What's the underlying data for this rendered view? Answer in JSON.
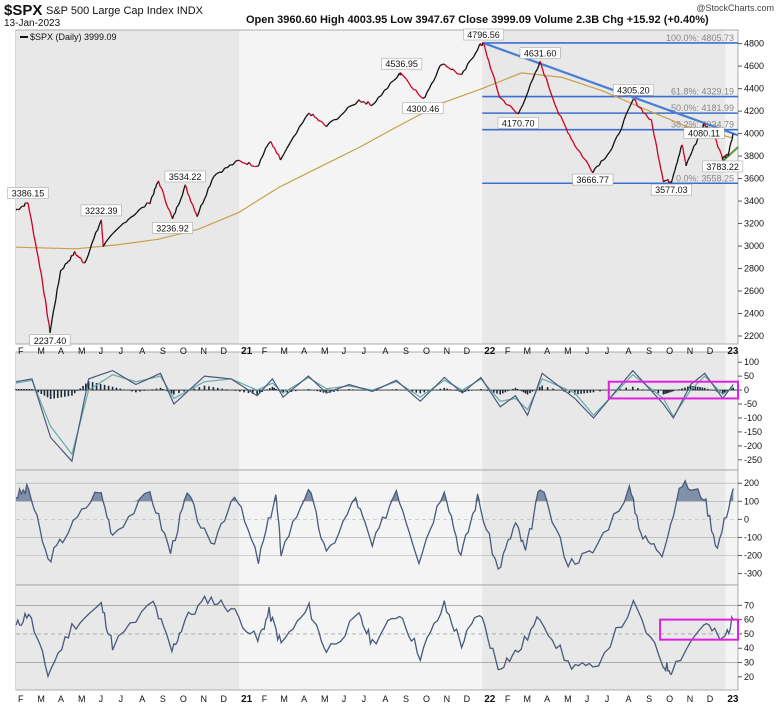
{
  "header": {
    "symbol": "$SPX",
    "name": "S&P 500 Large Cap Index",
    "exchange": "INDX",
    "date": "13-Jan-2023",
    "ohlc_text": "Open 3960.60  High 4003.95  Low 3947.67  Close 3999.09  Volume 2.3B  Chg +15.92 (+0.40%)",
    "brand": "@StockCharts.com"
  },
  "colors": {
    "price_up": "#111111",
    "price_down": "#cc0022",
    "ma": "#c9a14a",
    "trendline": "#4a7fd4",
    "support_green": "#5a9a3a",
    "fib_lines": "#3a6fd0",
    "magenta_box": "#e020e0",
    "indicator_line": "#4a5a7a",
    "indicator_fill": "#8090a8",
    "panel_bg_shaded": "#e8e8e8",
    "panel_bg": "#f4f4f4"
  },
  "chart_data": [
    {
      "type": "line",
      "panel": "price",
      "legend": "$SPX (Daily) 3999.09",
      "ylim": [
        2200,
        4850
      ],
      "y_ticks": [
        2200,
        2400,
        2600,
        2800,
        3000,
        3200,
        3400,
        3600,
        3800,
        4000,
        4200,
        4400,
        4600,
        4800
      ],
      "x_month_labels": [
        "F",
        "M",
        "A",
        "M",
        "J",
        "J",
        "A",
        "S",
        "O",
        "N",
        "D",
        "21",
        "F",
        "M",
        "A",
        "M",
        "J",
        "J",
        "A",
        "S",
        "O",
        "N",
        "D",
        "22",
        "F",
        "M",
        "A",
        "M",
        "J",
        "J",
        "A",
        "S",
        "O",
        "N",
        "D",
        "23"
      ],
      "x_range": [
        "2020-02-01",
        "2023-01-20"
      ],
      "series": [
        {
          "x": [
            "2020-02-01",
            "2020-02-19",
            "2020-03-10",
            "2020-03-23",
            "2020-04-08",
            "2020-04-29",
            "2020-05-14",
            "2020-06-08",
            "2020-06-11",
            "2020-07-15",
            "2020-08-20",
            "2020-09-02",
            "2020-09-23",
            "2020-10-12",
            "2020-10-30",
            "2020-11-24",
            "2020-12-31",
            "2021-01-29",
            "2021-02-16",
            "2021-03-04",
            "2021-04-16",
            "2021-05-12",
            "2021-06-30",
            "2021-07-20",
            "2021-08-30",
            "2021-09-02",
            "2021-10-04",
            "2021-11-02",
            "2021-12-01",
            "2021-12-28",
            "2022-01-03",
            "2022-01-27",
            "2022-02-24",
            "2022-03-29",
            "2022-04-26",
            "2022-05-20",
            "2022-06-16",
            "2022-07-15",
            "2022-08-16",
            "2022-09-12",
            "2022-09-30",
            "2022-10-12",
            "2022-10-28",
            "2022-11-03",
            "2022-11-30",
            "2022-12-13",
            "2022-12-28",
            "2023-01-05",
            "2023-01-13"
          ],
          "y": [
            3320,
            3386.15,
            2750,
            2237.4,
            2780,
            2940,
            2850,
            3232.39,
            3002,
            3226,
            3390,
            3580,
            3236.92,
            3534.22,
            3270,
            3630,
            3756,
            3714,
            3935,
            3768,
            4185,
            4063,
            4297,
            4258,
            4528,
            4536.95,
            4300.46,
            4630,
            4513,
            4786,
            4796.56,
            4326,
            4170.7,
            4631.6,
            4175,
            3900,
            3666.77,
            3865,
            4305.2,
            4110,
            3585,
            3577.03,
            3901,
            3720,
            4080.11,
            4019,
            3783.22,
            3808,
            3999.09
          ]
        },
        {
          "name": "MA",
          "x": [
            "2020-02-01",
            "2020-05-01",
            "2020-07-01",
            "2020-09-01",
            "2020-11-01",
            "2021-01-01",
            "2021-03-01",
            "2021-05-01",
            "2021-07-01",
            "2021-09-01",
            "2021-11-01",
            "2022-01-01",
            "2022-03-01",
            "2022-05-01",
            "2022-07-01",
            "2022-09-01",
            "2022-11-01",
            "2023-01-13"
          ],
          "y": [
            2990,
            2975,
            3010,
            3060,
            3150,
            3300,
            3520,
            3700,
            3880,
            4080,
            4270,
            4400,
            4540,
            4500,
            4380,
            4220,
            4070,
            3960
          ]
        }
      ],
      "annotations": [
        {
          "text": "3386.15",
          "x": "2020-02-19",
          "y": 3386.15
        },
        {
          "text": "2237.40",
          "x": "2020-03-23",
          "y": 2237.4
        },
        {
          "text": "3232.39",
          "x": "2020-06-08",
          "y": 3232.39
        },
        {
          "text": "3236.92",
          "x": "2020-09-23",
          "y": 3236.92
        },
        {
          "text": "3534.22",
          "x": "2020-10-12",
          "y": 3534.22
        },
        {
          "text": "4536.95",
          "x": "2021-09-02",
          "y": 4536.95
        },
        {
          "text": "4300.46",
          "x": "2021-10-04",
          "y": 4300.46
        },
        {
          "text": "4796.56",
          "x": "2022-01-03",
          "y": 4796.56
        },
        {
          "text": "4631.60",
          "x": "2022-03-29",
          "y": 4631.6
        },
        {
          "text": "4170.70",
          "x": "2022-02-24",
          "y": 4170.7
        },
        {
          "text": "3666.77",
          "x": "2022-06-16",
          "y": 3666.77
        },
        {
          "text": "4305.20",
          "x": "2022-08-16",
          "y": 4305.2
        },
        {
          "text": "3577.03",
          "x": "2022-10-12",
          "y": 3577.03
        },
        {
          "text": "4080.11",
          "x": "2022-11-30",
          "y": 4080.11
        },
        {
          "text": "3783.22",
          "x": "2022-12-28",
          "y": 3783.22
        }
      ],
      "fib_levels": [
        {
          "label": "100.0%: 4805.73",
          "y": 4805.73
        },
        {
          "label": "61.8%: 4329.19",
          "y": 4329.19
        },
        {
          "label": "50.0%: 4181.99",
          "y": 4181.99
        },
        {
          "label": "38.2%: 4034.79",
          "y": 4034.79
        },
        {
          "label": "0.0%: 3558.25",
          "y": 3558.25
        }
      ],
      "fib_start": "2022-01-01",
      "trendline": {
        "x": [
          "2022-01-03",
          "2023-01-20"
        ],
        "y": [
          4805,
          3985
        ]
      },
      "support_line": {
        "x": [
          "2022-12-20",
          "2023-01-20"
        ],
        "y": [
          3710,
          3880
        ]
      }
    },
    {
      "type": "line",
      "panel": "oscillator1",
      "ylim": [
        -265,
        115
      ],
      "y_ticks": [
        100,
        50,
        0,
        -50,
        -100,
        -150,
        -200,
        -250
      ],
      "x": [
        "2020-02-01",
        "2020-02-25",
        "2020-03-24",
        "2020-04-25",
        "2020-05-20",
        "2020-06-25",
        "2020-07-30",
        "2020-09-05",
        "2020-09-25",
        "2020-11-10",
        "2020-12-20",
        "2021-01-28",
        "2021-02-20",
        "2021-03-08",
        "2021-04-15",
        "2021-05-12",
        "2021-06-15",
        "2021-07-20",
        "2021-08-25",
        "2021-09-30",
        "2021-11-05",
        "2021-12-02",
        "2021-12-30",
        "2022-01-28",
        "2022-02-20",
        "2022-03-10",
        "2022-04-01",
        "2022-05-20",
        "2022-06-17",
        "2022-08-15",
        "2022-09-30",
        "2022-10-15",
        "2022-11-10",
        "2022-12-01",
        "2022-12-28",
        "2023-01-13"
      ],
      "series": [
        {
          "name": "fast",
          "values": [
            30,
            40,
            -170,
            -255,
            40,
            70,
            20,
            60,
            -50,
            50,
            40,
            -20,
            40,
            -25,
            50,
            -10,
            20,
            -5,
            35,
            -40,
            45,
            -10,
            45,
            -60,
            -20,
            -90,
            60,
            -30,
            -100,
            70,
            -50,
            -100,
            20,
            60,
            -30,
            20
          ]
        },
        {
          "name": "slow",
          "values": [
            25,
            35,
            -130,
            -230,
            0,
            55,
            30,
            50,
            -30,
            30,
            40,
            0,
            25,
            -10,
            45,
            5,
            15,
            0,
            30,
            -25,
            35,
            0,
            40,
            -40,
            -30,
            -70,
            40,
            -10,
            -90,
            55,
            -30,
            -95,
            0,
            50,
            -15,
            10
          ]
        }
      ],
      "histogram_note": "dark histogram bars around zero",
      "box": {
        "x": [
          "2022-07-10",
          "2023-01-20"
        ],
        "y": [
          -30,
          30
        ]
      }
    },
    {
      "type": "area",
      "panel": "oscillator2",
      "ylim": [
        -330,
        240
      ],
      "y_ticks": [
        200,
        100,
        0,
        -100,
        -200,
        -300
      ],
      "x": [
        "2020-02-01",
        "2020-02-20",
        "2020-03-20",
        "2020-04-20",
        "2020-06-05",
        "2020-06-25",
        "2020-08-20",
        "2020-09-20",
        "2020-10-15",
        "2020-11-20",
        "2020-12-25",
        "2021-01-30",
        "2021-02-25",
        "2021-03-05",
        "2021-04-15",
        "2021-05-12",
        "2021-06-25",
        "2021-07-20",
        "2021-08-25",
        "2021-09-28",
        "2021-11-05",
        "2021-11-30",
        "2021-12-25",
        "2022-01-25",
        "2022-02-20",
        "2022-03-07",
        "2022-03-29",
        "2022-05-10",
        "2022-06-16",
        "2022-08-10",
        "2022-08-30",
        "2022-09-28",
        "2022-10-28",
        "2022-11-30",
        "2022-12-20",
        "2023-01-13"
      ],
      "values": [
        130,
        170,
        -230,
        -60,
        170,
        -80,
        150,
        -180,
        140,
        -160,
        150,
        -230,
        140,
        -180,
        180,
        -200,
        120,
        -150,
        170,
        -220,
        180,
        -200,
        120,
        -280,
        -20,
        -180,
        180,
        -240,
        -180,
        170,
        -100,
        -180,
        200,
        130,
        -160,
        180
      ]
    },
    {
      "type": "line",
      "panel": "rsi",
      "ylim": [
        15,
        80
      ],
      "y_ticks": [
        70,
        60,
        50,
        40,
        30,
        20
      ],
      "x": [
        "2020-02-01",
        "2020-02-20",
        "2020-03-20",
        "2020-04-25",
        "2020-06-08",
        "2020-06-25",
        "2020-08-25",
        "2020-09-22",
        "2020-10-12",
        "2020-11-15",
        "2020-12-20",
        "2021-01-29",
        "2021-02-15",
        "2021-03-05",
        "2021-04-16",
        "2021-05-12",
        "2021-06-30",
        "2021-07-20",
        "2021-08-30",
        "2021-09-30",
        "2021-11-05",
        "2021-12-01",
        "2021-12-28",
        "2022-01-25",
        "2022-02-24",
        "2022-03-29",
        "2022-05-10",
        "2022-06-16",
        "2022-08-16",
        "2022-09-30",
        "2022-10-12",
        "2022-11-30",
        "2022-12-28",
        "2023-01-13"
      ],
      "values": [
        55,
        65,
        22,
        55,
        70,
        42,
        72,
        38,
        60,
        75,
        68,
        45,
        65,
        43,
        68,
        38,
        62,
        44,
        65,
        35,
        70,
        43,
        65,
        27,
        38,
        62,
        29,
        25,
        70,
        28,
        25,
        58,
        45,
        60
      ],
      "levels": [
        70,
        50,
        30
      ],
      "box": {
        "x": [
          "2022-09-25",
          "2023-01-20"
        ],
        "y": [
          46,
          60
        ]
      }
    }
  ]
}
